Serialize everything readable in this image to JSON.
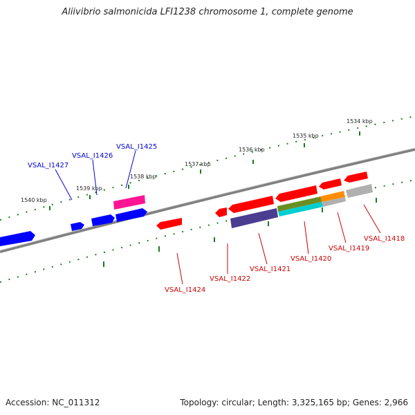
{
  "title": "Aliivibrio salmonicida LFI1238 chromosome 1, complete genome",
  "footer": {
    "accession": "Accession: NC_011312",
    "topology": "Topology: circular; Length: 3,325,165 bp; Genes: 2,966"
  },
  "scale_labels": [
    "1540 kbp",
    "1539 kbp",
    "1538 kbp",
    "1537 kbp",
    "1536 kbp",
    "1535 kbp",
    "1534 kbp"
  ],
  "gene_labels": [
    {
      "text": "VSAL_I1427",
      "color": "#0000cc"
    },
    {
      "text": "VSAL_I1426",
      "color": "#0000cc"
    },
    {
      "text": "VSAL_I1425",
      "color": "#0000cc"
    },
    {
      "text": "VSAL_I1424",
      "color": "#cc0000"
    },
    {
      "text": "VSAL_I1422",
      "color": "#cc0000"
    },
    {
      "text": "VSAL_I1421",
      "color": "#cc0000"
    },
    {
      "text": "VSAL_I1420",
      "color": "#cc0000"
    },
    {
      "text": "VSAL_I1419",
      "color": "#cc0000"
    },
    {
      "text": "VSAL_I1418",
      "color": "#cc0000"
    }
  ],
  "colors": {
    "backbone": "#808080",
    "ticks": "#1a7a1a",
    "forward_gene": "#0000ff",
    "reverse_gene": "#ff0000",
    "magenta": "#ff1493",
    "slate": "#4b3d8f",
    "olive": "#6b8e23",
    "cyan": "#00ced1",
    "orange": "#ff8c00",
    "gray": "#b0b0b0"
  }
}
